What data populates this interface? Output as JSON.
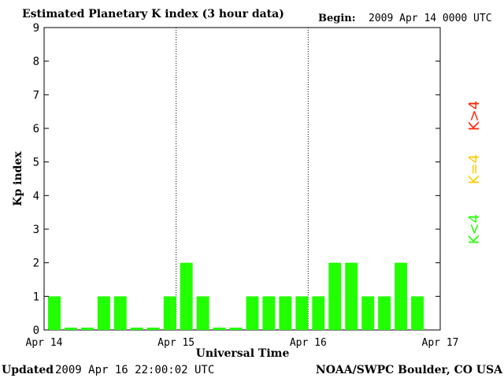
{
  "header": {
    "title": "Estimated Planetary K index (3 hour data)",
    "begin_label": "Begin:",
    "begin_value": "2009 Apr 14 0000 UTC"
  },
  "footer": {
    "updated_label": "Updated",
    "updated_value": "2009 Apr 16 22:00:02 UTC",
    "credit": "NOAA/SWPC Boulder, CO USA"
  },
  "legend": {
    "high": "K>4",
    "equal": "K=4",
    "low": "K<4"
  },
  "colors": {
    "low": "#22ff00",
    "equal": "#ffcc00",
    "high": "#ff2200",
    "axis": "#000000"
  },
  "chart_data": {
    "type": "bar",
    "title": "Estimated Planetary K index (3 hour data)",
    "xlabel": "Universal Time",
    "ylabel": "Kp index",
    "ylim": [
      0,
      9
    ],
    "y_ticks": [
      "0",
      "1",
      "2",
      "3",
      "4",
      "5",
      "6",
      "7",
      "8",
      "9"
    ],
    "x_ticks": [
      "Apr 14",
      "Apr 15",
      "Apr 16",
      "Apr 17"
    ],
    "day_separators": [
      "Apr 15",
      "Apr 16"
    ],
    "bar_interval_hours": 3,
    "values": [
      1,
      0,
      0,
      1,
      1,
      0,
      0,
      1,
      2,
      1,
      0,
      0,
      1,
      1,
      1,
      1,
      1,
      2,
      2,
      1,
      1,
      2,
      1
    ]
  }
}
